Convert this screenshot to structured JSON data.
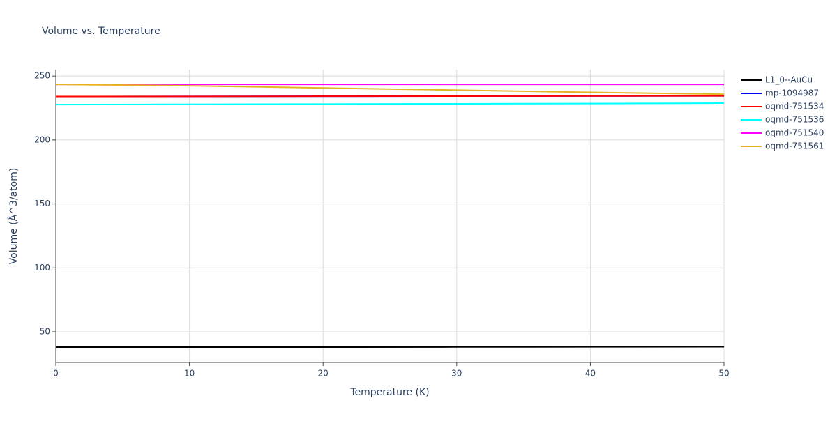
{
  "chart_data": {
    "type": "line",
    "title": "Volume vs. Temperature",
    "x_label": "Temperature (K)",
    "y_label": "Volume (Å^3/atom)",
    "x": [
      0,
      10,
      20,
      30,
      40,
      50
    ],
    "xlim": [
      0,
      50
    ],
    "xticks": [
      0,
      10,
      20,
      30,
      40,
      50
    ],
    "ylim": [
      26,
      255
    ],
    "yticks": [
      50,
      100,
      150,
      200,
      250
    ],
    "grid": true,
    "legend": "right",
    "series": [
      {
        "name": "L1_0--AuCu",
        "color": "#000000",
        "values": [
          38,
          38,
          38,
          38.1,
          38.2,
          38.3
        ]
      },
      {
        "name": "mp-1094987",
        "color": "#0000ff",
        "values": [
          234,
          234.1,
          234.2,
          234.3,
          234.4,
          234.5
        ]
      },
      {
        "name": "oqmd-751534",
        "color": "#ff0000",
        "values": [
          234,
          234.1,
          234.2,
          234.3,
          234.4,
          234.5
        ]
      },
      {
        "name": "oqmd-751536",
        "color": "#00ffff",
        "values": [
          227.7,
          227.9,
          228.1,
          228.3,
          228.5,
          228.8
        ]
      },
      {
        "name": "oqmd-751540",
        "color": "#ff00ff",
        "values": [
          243.5,
          243.5,
          243.5,
          243.5,
          243.5,
          243.5
        ]
      },
      {
        "name": "oqmd-751561",
        "color": "#e6b422",
        "values": [
          243.5,
          242.4,
          240.7,
          239,
          237.3,
          235.8
        ]
      }
    ]
  }
}
